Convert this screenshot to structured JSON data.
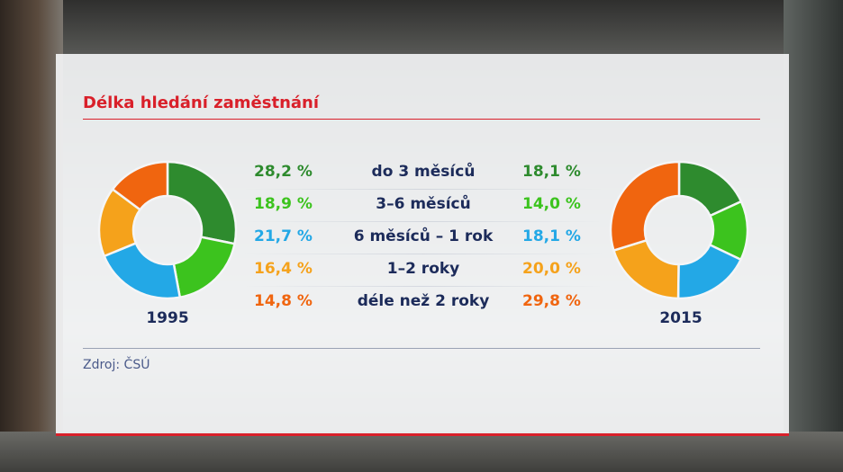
{
  "title": "Délka hledání zaměstnání",
  "source": "Zdroj: ČSÚ",
  "colors": {
    "accent": "#d9202a",
    "text": "#1c2b5a",
    "do_3_mesicu": "#2e8b2e",
    "3_6_mesicu": "#3cc31e",
    "6_mesicu_1_rok": "#23a8e6",
    "1_2_roky": "#f5a21b",
    "dele_nez_2_roky": "#f0650f"
  },
  "chart_data": {
    "type": "pie",
    "style": "donut",
    "categories": [
      "do 3 měsíců",
      "3–6 měsíců",
      "6 měsíců – 1 rok",
      "1–2 roky",
      "déle než 2 roky"
    ],
    "series": [
      {
        "name": "1995",
        "values": [
          28.2,
          18.9,
          21.7,
          16.4,
          14.8
        ],
        "labels": [
          "28,2 %",
          "18,9 %",
          "21,7 %",
          "16,4 %",
          "14,8 %"
        ]
      },
      {
        "name": "2015",
        "values": [
          18.1,
          14.0,
          18.1,
          20.0,
          29.8
        ],
        "labels": [
          "18,1 %",
          "14,0 %",
          "18,1 %",
          "20,0 %",
          "29,8 %"
        ]
      }
    ]
  }
}
